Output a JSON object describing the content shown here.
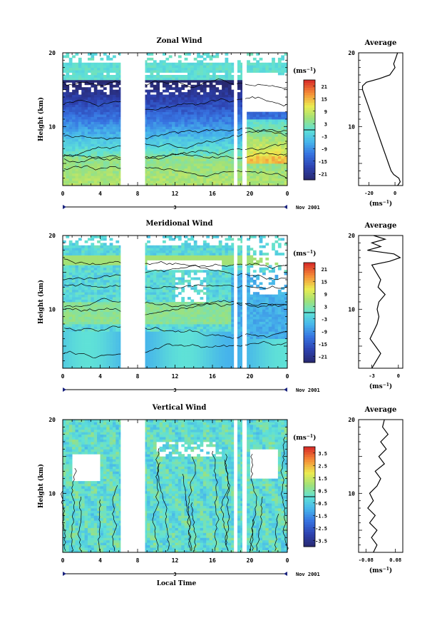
{
  "chart_data": [
    {
      "type": "heatmap",
      "title": "Zonal Wind",
      "ylabel": "Height (km)",
      "y_range": [
        2,
        20
      ],
      "y_ticks": [
        "10",
        "20"
      ],
      "x_range": [
        0,
        24
      ],
      "x_ticks": [
        "0",
        "4",
        "8",
        "12",
        "16",
        "20",
        "0"
      ],
      "day_label": "3",
      "date_label": "Nov 2001",
      "colorbar": {
        "unit": "(ms",
        "unit_sup": "−1",
        "unit_close": ")",
        "ticks": [
          "21",
          "15",
          "9",
          "3",
          "-3",
          "-9",
          "-15",
          "-21"
        ],
        "range": [
          -24,
          24
        ]
      },
      "gaps": [
        [
          6.2,
          8.8
        ],
        [
          18.3,
          18.6
        ],
        [
          19.2,
          19.5
        ]
      ],
      "profile": {
        "title": "Average",
        "x_ticks": [
          "-20",
          "0"
        ],
        "x_range": [
          -28,
          6
        ],
        "xlabel": "(ms",
        "xlabel_sup": "−1",
        "xlabel_close": ")",
        "y_ticks": [
          "10",
          "20"
        ],
        "heights": [
          2,
          2.5,
          3,
          3.5,
          4,
          5,
          6,
          7,
          8,
          9,
          10,
          11,
          12,
          13,
          14,
          15,
          15.5,
          16,
          16.5,
          17,
          17.5,
          18,
          18.5,
          19,
          19.5,
          20
        ],
        "values": [
          2,
          4,
          3,
          -1,
          -3,
          -5,
          -7,
          -9,
          -11,
          -13,
          -15,
          -17,
          -19,
          -21,
          -23,
          -25,
          -25,
          -22,
          -12,
          -4,
          -2,
          0,
          -1,
          0,
          1,
          2
        ]
      }
    },
    {
      "type": "heatmap",
      "title": "Meridional Wind",
      "ylabel": "Height (km)",
      "y_range": [
        2,
        20
      ],
      "y_ticks": [
        "10",
        "20"
      ],
      "x_range": [
        0,
        24
      ],
      "x_ticks": [
        "0",
        "4",
        "8",
        "12",
        "16",
        "20",
        "0"
      ],
      "day_label": "3",
      "date_label": "Nov 2001",
      "colorbar": {
        "unit": "(ms",
        "unit_sup": "−1",
        "unit_close": ")",
        "ticks": [
          "21",
          "15",
          "9",
          "3",
          "-3",
          "-9",
          "-15",
          "-21"
        ],
        "range": [
          -24,
          24
        ]
      },
      "gaps": [
        [
          6.2,
          8.8
        ],
        [
          18.3,
          18.6
        ],
        [
          19.2,
          19.5
        ]
      ],
      "profile": {
        "title": "Average",
        "x_ticks": [
          "-3",
          "0"
        ],
        "x_range": [
          -4.5,
          0.5
        ],
        "xlabel": "(ms",
        "xlabel_sup": "−1",
        "xlabel_close": ")",
        "y_ticks": [
          "10",
          "20"
        ],
        "heights": [
          2,
          3,
          4,
          5,
          6,
          7,
          8,
          9,
          10,
          11,
          12,
          13,
          14,
          15,
          16,
          16.5,
          17,
          17.5,
          18,
          18.5,
          19,
          19.5,
          20
        ],
        "values": [
          -3,
          -2.5,
          -2,
          -2.6,
          -3.2,
          -2.8,
          -2.4,
          -2.2,
          -2.4,
          -2.2,
          -1.5,
          -2.3,
          -2.0,
          -2.5,
          -3.0,
          -1.0,
          0.2,
          -0.5,
          -3.5,
          -2.0,
          -3.0,
          -1.5,
          -2.8
        ]
      }
    },
    {
      "type": "heatmap",
      "title": "Vertical Wind",
      "ylabel": "Height (km)",
      "xlabel": "Local Time",
      "y_range": [
        2,
        20
      ],
      "y_ticks": [
        "10",
        "20"
      ],
      "x_range": [
        0,
        24
      ],
      "x_ticks": [
        "0",
        "4",
        "8",
        "12",
        "16",
        "20",
        "0"
      ],
      "day_label": "3",
      "date_label": "Nov 2001",
      "colorbar": {
        "unit": "(ms",
        "unit_sup": "−1",
        "unit_close": ")",
        "ticks": [
          "3.5",
          "2.5",
          "1.5",
          "0.5",
          "-0.5",
          "-1.5",
          "-2.5",
          "-3.5"
        ],
        "range": [
          -4,
          4
        ]
      },
      "gaps": [
        [
          6.2,
          8.8
        ],
        [
          18.3,
          18.6
        ],
        [
          19.2,
          19.5
        ]
      ],
      "profile": {
        "title": "Average",
        "x_ticks": [
          "-0.08",
          "0.08"
        ],
        "x_range": [
          -0.12,
          0.12
        ],
        "xlabel": "(ms",
        "xlabel_sup": "−1",
        "xlabel_close": ")",
        "y_ticks": [
          "10",
          "20"
        ],
        "heights": [
          2,
          3,
          4,
          5,
          6,
          7,
          8,
          9,
          10,
          11,
          12,
          13,
          14,
          15,
          16,
          17,
          18,
          19,
          20
        ],
        "values": [
          -0.04,
          -0.02,
          -0.05,
          -0.02,
          -0.06,
          -0.03,
          -0.07,
          -0.04,
          -0.06,
          -0.02,
          0.0,
          -0.03,
          0.02,
          -0.01,
          0.03,
          0.0,
          0.04,
          0.01,
          0.02
        ]
      }
    }
  ]
}
